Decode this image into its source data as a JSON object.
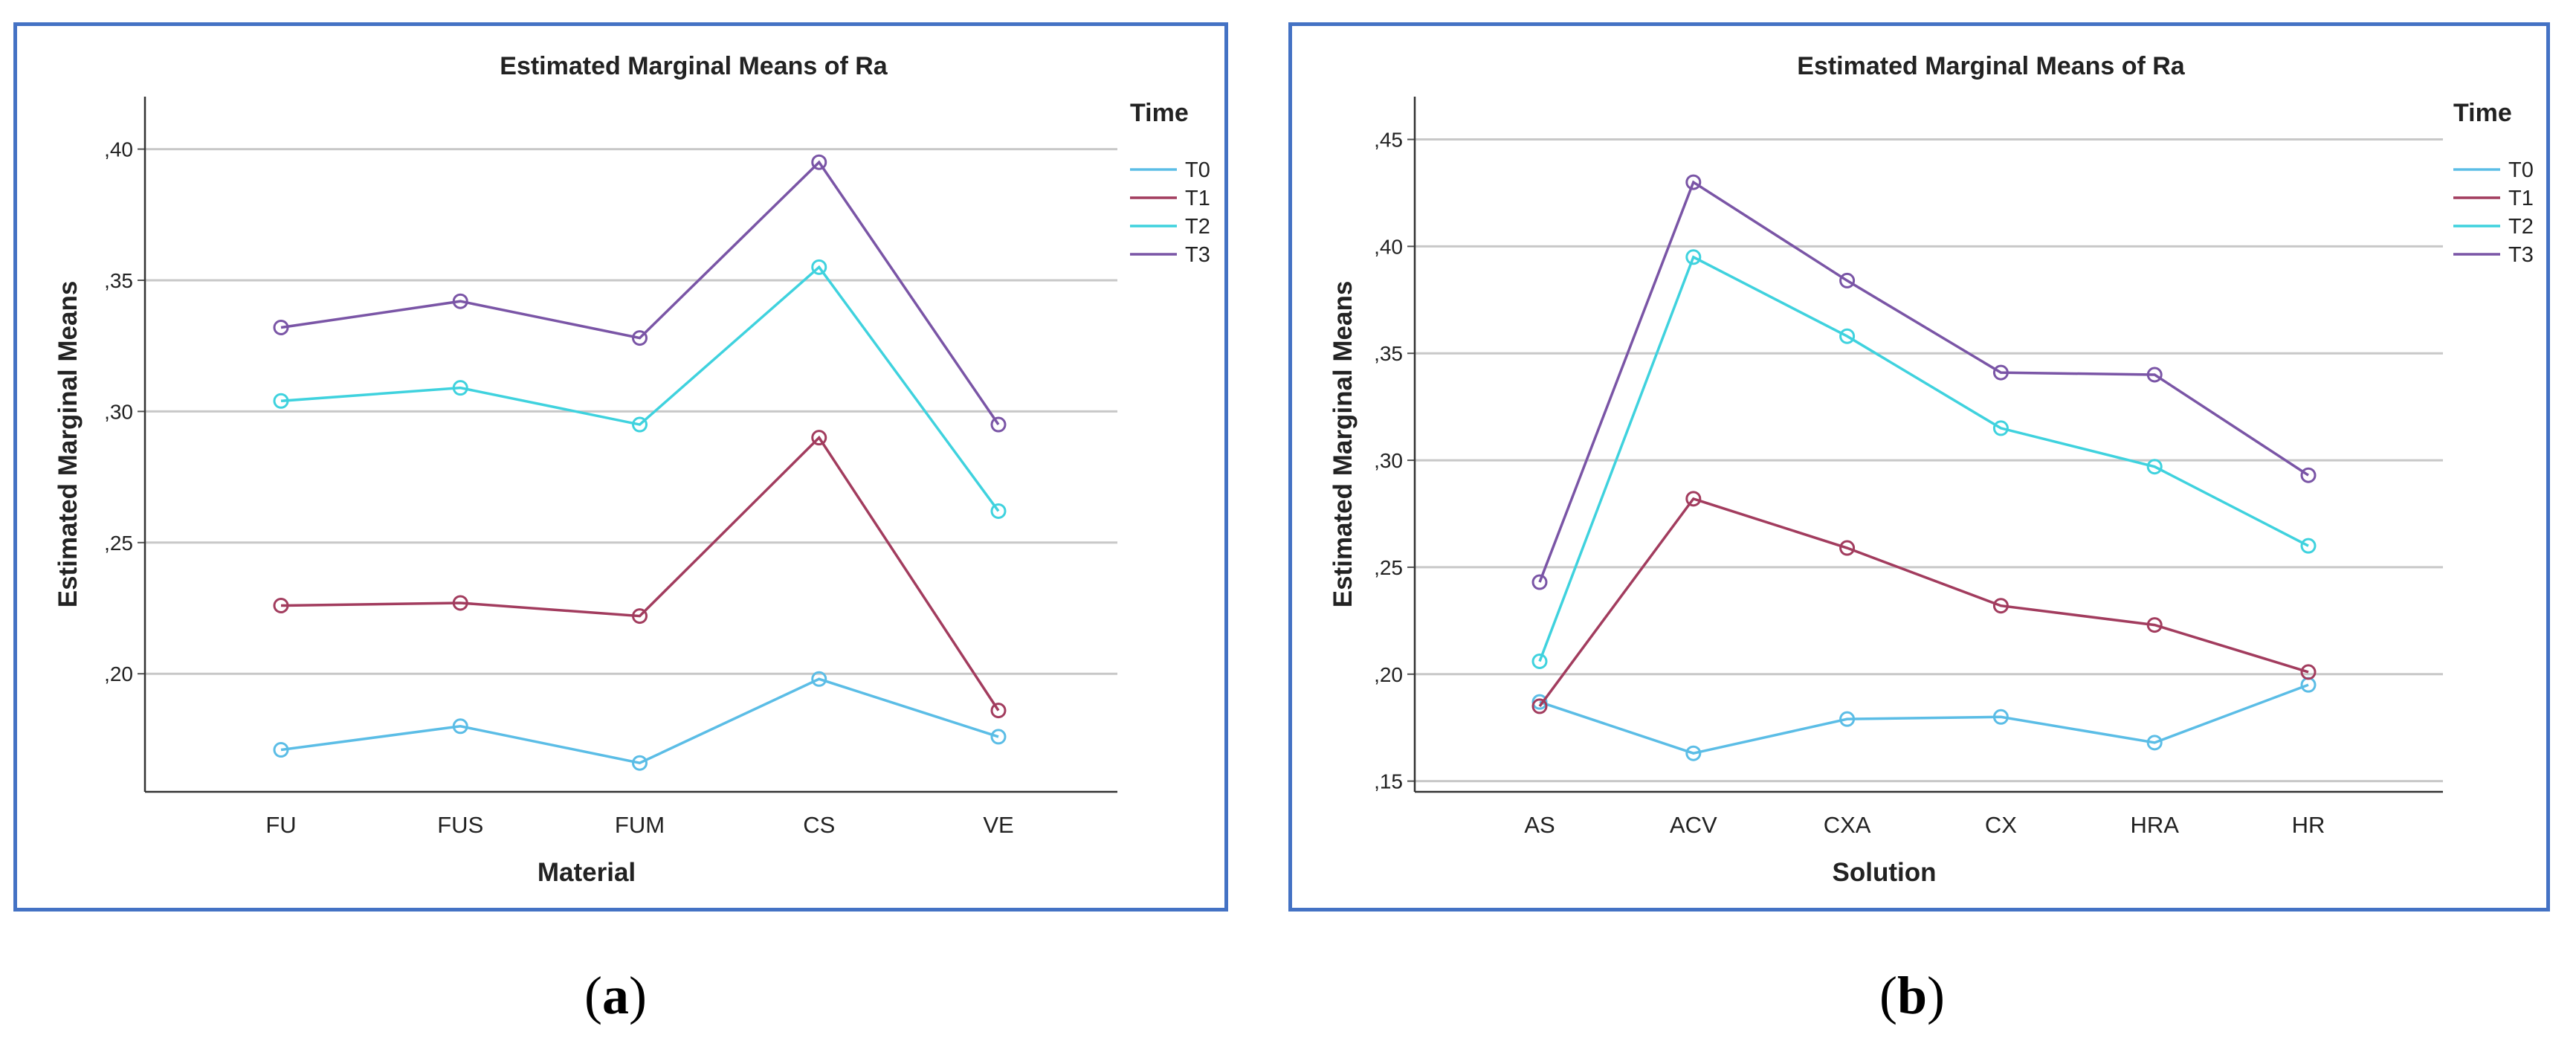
{
  "chart_data": [
    {
      "type": "line",
      "panel_label": "a",
      "title": "Estimated Marginal Means of Ra",
      "xlabel": "Material",
      "ylabel": "Estimated Marginal Means",
      "categories": [
        "FU",
        "FUS",
        "FUM",
        "CS",
        "VE"
      ],
      "ylim": [
        0.155,
        0.42
      ],
      "yticks": [
        0.2,
        0.25,
        0.3,
        0.35,
        0.4
      ],
      "ytick_labels": [
        ",20",
        ",25",
        ",30",
        ",35",
        ",40"
      ],
      "legend_title": "Time",
      "series": [
        {
          "name": "T0",
          "color": "#5bbde6",
          "values": [
            0.171,
            0.18,
            0.166,
            0.198,
            0.176
          ]
        },
        {
          "name": "T1",
          "color": "#a23c5e",
          "values": [
            0.226,
            0.227,
            0.222,
            0.29,
            0.186
          ]
        },
        {
          "name": "T2",
          "color": "#3fd2de",
          "values": [
            0.304,
            0.309,
            0.295,
            0.355,
            0.262
          ]
        },
        {
          "name": "T3",
          "color": "#7a55a6",
          "values": [
            0.332,
            0.342,
            0.328,
            0.395,
            0.295
          ]
        }
      ]
    },
    {
      "type": "line",
      "panel_label": "b",
      "title": "Estimated Marginal Means of Ra",
      "xlabel": "Solution",
      "ylabel": "Estimated Marginal Means",
      "categories": [
        "AS",
        "ACV",
        "CXA",
        "CX",
        "HRA",
        "HR"
      ],
      "ylim": [
        0.145,
        0.47
      ],
      "yticks": [
        0.15,
        0.2,
        0.25,
        0.3,
        0.35,
        0.4,
        0.45
      ],
      "ytick_labels": [
        ",15",
        ",20",
        ",25",
        ",30",
        ",35",
        ",40",
        ",45"
      ],
      "legend_title": "Time",
      "series": [
        {
          "name": "T0",
          "color": "#5bbde6",
          "values": [
            0.187,
            0.163,
            0.179,
            0.18,
            0.168,
            0.195
          ]
        },
        {
          "name": "T1",
          "color": "#a23c5e",
          "values": [
            0.185,
            0.282,
            0.259,
            0.232,
            0.223,
            0.201
          ]
        },
        {
          "name": "T2",
          "color": "#3fd2de",
          "values": [
            0.206,
            0.395,
            0.358,
            0.315,
            0.297,
            0.26
          ]
        },
        {
          "name": "T3",
          "color": "#7a55a6",
          "values": [
            0.243,
            0.43,
            0.384,
            0.341,
            0.34,
            0.293
          ]
        }
      ]
    }
  ]
}
